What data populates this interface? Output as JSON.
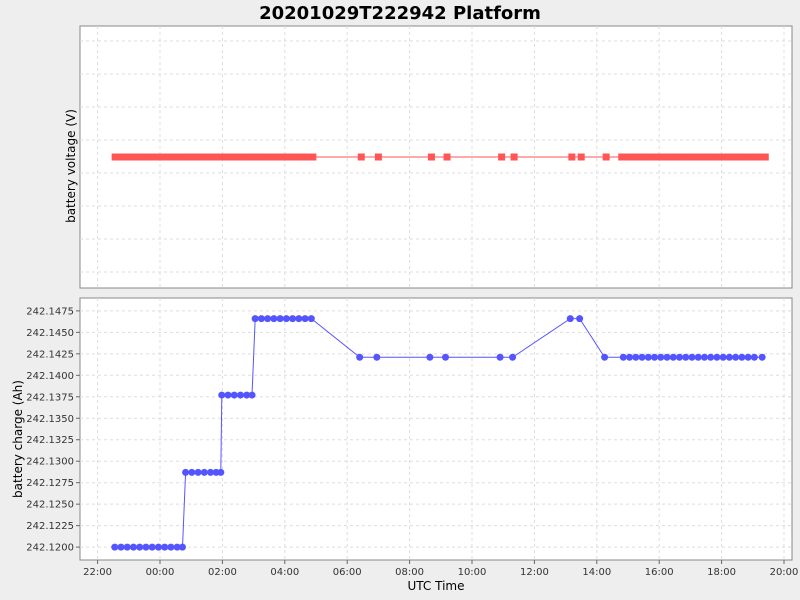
{
  "chart_data": [
    {
      "type": "line",
      "title": "20201029T222942 Platform",
      "ylabel": "battery voltage (V)",
      "x_ticks": [
        "22:00",
        "00:00",
        "02:00",
        "04:00",
        "06:00",
        "08:00",
        "10:00",
        "12:00",
        "14:00",
        "16:00",
        "18:00",
        "20:00"
      ],
      "y_ticks": [],
      "grid": true,
      "series": [
        {
          "color": "#ff5555",
          "marker": "square",
          "x_hours": [
            -1.4,
            -0.4,
            0.6,
            1.6,
            2.6,
            3.6,
            4.9,
            6.45,
            7.0,
            8.7,
            9.2,
            10.95,
            11.35,
            13.2,
            13.5,
            14.3,
            14.8,
            15.8,
            16.8,
            17.8,
            18.8,
            19.4
          ],
          "voltage_level": "constant"
        }
      ]
    },
    {
      "type": "line",
      "xlabel": "UTC Time",
      "ylabel": "battery charge (Ah)",
      "ylim": [
        242.1185,
        242.149
      ],
      "y_ticks": [
        "242.1200",
        "242.1225",
        "242.1250",
        "242.1275",
        "242.1300",
        "242.1325",
        "242.1350",
        "242.1375",
        "242.1400",
        "242.1425",
        "242.1450",
        "242.1475"
      ],
      "x_ticks": [
        "22:00",
        "00:00",
        "02:00",
        "04:00",
        "06:00",
        "08:00",
        "10:00",
        "12:00",
        "14:00",
        "16:00",
        "18:00",
        "20:00"
      ],
      "grid": true,
      "series": [
        {
          "color": "#5555ff",
          "marker": "circle",
          "points": [
            [
              -1.45,
              242.12
            ],
            [
              -1.25,
              242.12
            ],
            [
              -1.05,
              242.12
            ],
            [
              -0.85,
              242.12
            ],
            [
              -0.65,
              242.12
            ],
            [
              -0.45,
              242.12
            ],
            [
              -0.25,
              242.12
            ],
            [
              -0.05,
              242.12
            ],
            [
              0.15,
              242.12
            ],
            [
              0.35,
              242.12
            ],
            [
              0.55,
              242.12
            ],
            [
              0.72,
              242.12
            ],
            [
              0.82,
              242.1287
            ],
            [
              1.02,
              242.1287
            ],
            [
              1.22,
              242.1287
            ],
            [
              1.42,
              242.1287
            ],
            [
              1.62,
              242.1287
            ],
            [
              1.8,
              242.1287
            ],
            [
              1.95,
              242.1287
            ],
            [
              1.98,
              242.1377
            ],
            [
              2.18,
              242.1377
            ],
            [
              2.38,
              242.1377
            ],
            [
              2.58,
              242.1377
            ],
            [
              2.78,
              242.1377
            ],
            [
              2.95,
              242.1377
            ],
            [
              3.05,
              242.1466
            ],
            [
              3.25,
              242.1466
            ],
            [
              3.45,
              242.1466
            ],
            [
              3.65,
              242.1466
            ],
            [
              3.85,
              242.1466
            ],
            [
              4.05,
              242.1466
            ],
            [
              4.25,
              242.1466
            ],
            [
              4.45,
              242.1466
            ],
            [
              4.65,
              242.1466
            ],
            [
              4.85,
              242.1466
            ],
            [
              6.4,
              242.1421
            ],
            [
              6.95,
              242.1421
            ],
            [
              8.65,
              242.1421
            ],
            [
              9.15,
              242.1421
            ],
            [
              10.9,
              242.1421
            ],
            [
              11.3,
              242.1421
            ],
            [
              13.15,
              242.1466
            ],
            [
              13.45,
              242.1466
            ],
            [
              14.25,
              242.1421
            ],
            [
              14.85,
              242.1421
            ],
            [
              15.05,
              242.1421
            ],
            [
              15.25,
              242.1421
            ],
            [
              15.45,
              242.1421
            ],
            [
              15.65,
              242.1421
            ],
            [
              15.85,
              242.1421
            ],
            [
              16.05,
              242.1421
            ],
            [
              16.25,
              242.1421
            ],
            [
              16.45,
              242.1421
            ],
            [
              16.65,
              242.1421
            ],
            [
              16.85,
              242.1421
            ],
            [
              17.05,
              242.1421
            ],
            [
              17.25,
              242.1421
            ],
            [
              17.45,
              242.1421
            ],
            [
              17.65,
              242.1421
            ],
            [
              17.85,
              242.1421
            ],
            [
              18.05,
              242.1421
            ],
            [
              18.25,
              242.1421
            ],
            [
              18.45,
              242.1421
            ],
            [
              18.65,
              242.1421
            ],
            [
              18.85,
              242.1421
            ],
            [
              19.05,
              242.1421
            ],
            [
              19.3,
              242.1421
            ]
          ]
        }
      ]
    }
  ]
}
